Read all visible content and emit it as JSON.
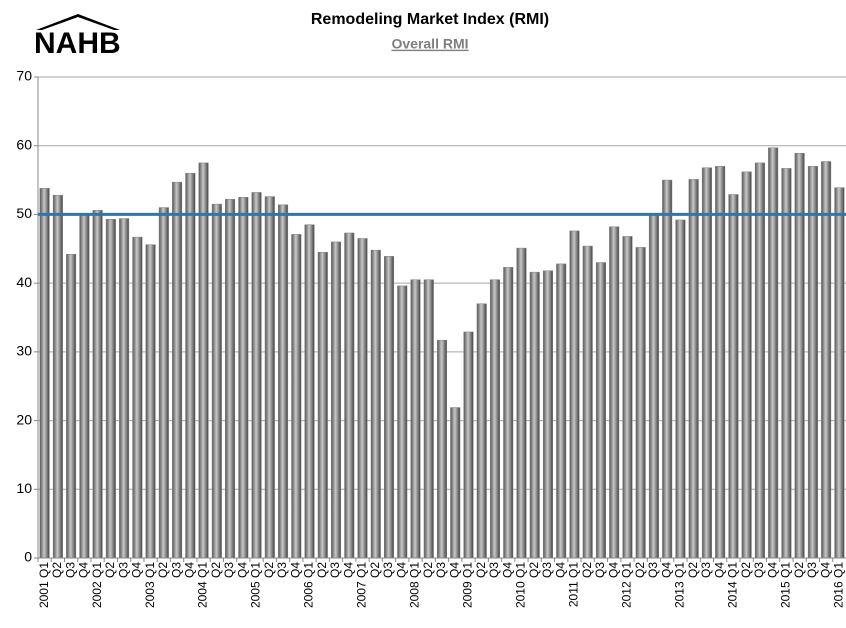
{
  "logo": "NAHB",
  "chart_data": {
    "type": "bar",
    "title": "Remodeling Market Index (RMI)",
    "subtitle": "Overall RMI",
    "categories": [
      "2001 Q1",
      "Q2",
      "Q3",
      "Q4",
      "2002 Q1",
      "Q2",
      "Q3",
      "Q4",
      "2003 Q1",
      "Q2",
      "Q3",
      "Q4",
      "2004 Q1",
      "Q2",
      "Q3",
      "Q4",
      "2005 Q1",
      "Q2",
      "Q3",
      "Q4",
      "2006 Q1",
      "Q2",
      "Q3",
      "Q4",
      "2007 Q1",
      "Q2",
      "Q3",
      "Q4",
      "2008 Q1",
      "Q2",
      "Q3",
      "Q4",
      "2009 Q1",
      "Q2",
      "Q3",
      "Q4",
      "2010 Q1",
      "Q2",
      "Q3",
      "Q4",
      "2011 Q1",
      "Q2",
      "Q3",
      "Q4",
      "2012 Q1",
      "Q2",
      "Q3",
      "Q4",
      "2013 Q1",
      "Q2",
      "Q3",
      "Q4",
      "2014 Q1",
      "Q2",
      "Q3",
      "Q4",
      "2015 Q1",
      "Q2",
      "Q3",
      "Q4",
      "2016 Q1"
    ],
    "values": [
      53.8,
      52.8,
      44.2,
      50.0,
      50.6,
      49.3,
      49.4,
      46.7,
      45.6,
      51.0,
      54.7,
      56.0,
      57.5,
      51.5,
      52.2,
      52.5,
      53.2,
      52.6,
      51.4,
      47.1,
      48.5,
      44.5,
      46.0,
      47.3,
      46.5,
      44.8,
      43.9,
      39.6,
      40.5,
      40.5,
      31.7,
      21.9,
      32.9,
      37.0,
      40.5,
      42.3,
      45.1,
      41.6,
      41.8,
      42.8,
      47.6,
      45.4,
      43.0,
      48.2,
      46.8,
      45.2,
      50.1,
      55.0,
      49.2,
      55.1,
      56.8,
      57.0,
      52.9,
      56.2,
      57.5,
      59.7,
      56.7,
      58.9,
      57.0,
      57.7,
      53.9
    ],
    "color": "#808080",
    "reference_line": 50,
    "reference_color": "#2e75b6",
    "ylim": [
      0,
      70
    ],
    "yticks": [
      0,
      10,
      20,
      30,
      40,
      50,
      60,
      70
    ],
    "grid": true
  }
}
